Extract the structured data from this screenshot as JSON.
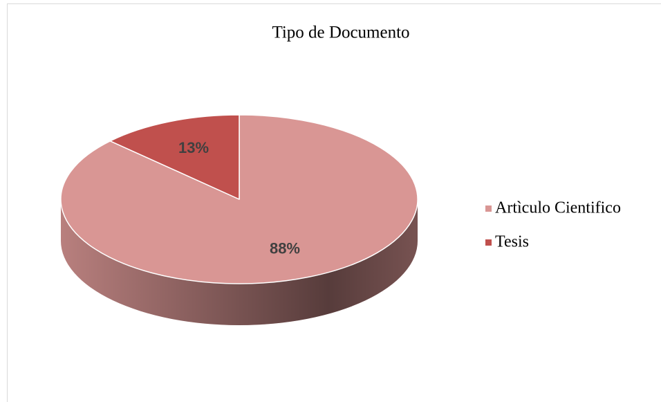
{
  "chart_data": {
    "type": "pie",
    "title": "Tipo de Documento",
    "categories": [
      "Artìculo Cientifico",
      "Tesis"
    ],
    "values": [
      88,
      13
    ],
    "value_labels": [
      "88%",
      "13%"
    ],
    "colors": [
      "#d99694",
      "#c0504d"
    ],
    "legend": "right",
    "three_d": true
  }
}
